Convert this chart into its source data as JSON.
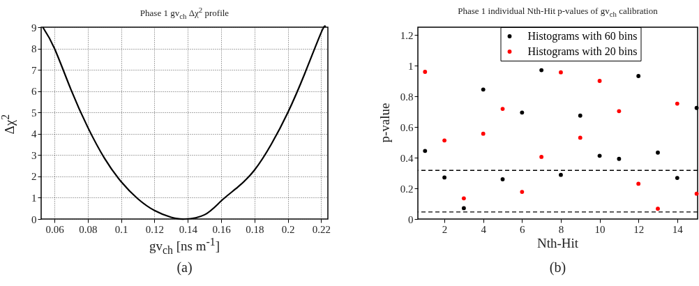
{
  "chart_data": [
    {
      "type": "line",
      "title": "Phase 1 gv$_{ch}$ Δχ$^{2}$ profile",
      "xlabel": "gv$_{ch}$ [ns m$^{-1}$]",
      "ylabel": "Δχ$^{2}$",
      "annotations": [
        "(a)"
      ],
      "series": [
        {
          "color": "#000000",
          "x": [
            0.053,
            0.06,
            0.07,
            0.08,
            0.09,
            0.1,
            0.11,
            0.12,
            0.13,
            0.138,
            0.15,
            0.16,
            0.17,
            0.18,
            0.19,
            0.2,
            0.21,
            0.22,
            0.2225
          ],
          "values": [
            9,
            8,
            6.05,
            4.3,
            2.85,
            1.75,
            0.95,
            0.4,
            0.08,
            0,
            0.2,
            0.85,
            1.5,
            2.3,
            3.5,
            5,
            6.8,
            8.75,
            9
          ]
        }
      ],
      "xlim": [
        0.052,
        0.224
      ],
      "ylim": [
        0,
        9
      ],
      "xticks": [
        0.06,
        0.08,
        0.1,
        0.12,
        0.14,
        0.16,
        0.18,
        0.2,
        0.22
      ],
      "yticks": [
        0,
        1,
        2,
        3,
        4,
        5,
        6,
        7,
        8,
        9
      ],
      "grid": true,
      "line_style": "solid"
    },
    {
      "type": "scatter",
      "title": "Phase 1 individual Nth-Hit p-values of gv$_{ch}$ calibration",
      "xlabel": "Nth-Hit",
      "ylabel": "p-value",
      "annotations": [
        "(b)"
      ],
      "x": [
        1,
        2,
        3,
        4,
        5,
        6,
        7,
        8,
        9,
        10,
        11,
        12,
        13,
        14,
        15
      ],
      "series": [
        {
          "name": "Histograms with 60 bins",
          "color": "#000000",
          "values": [
            0.444,
            0.271,
            0.071,
            0.844,
            0.259,
            0.694,
            0.97,
            0.288,
            0.674,
            0.412,
            0.392,
            0.932,
            0.433,
            0.268,
            0.724
          ]
        },
        {
          "name": "Histograms with 20 bins",
          "color": "#ff0000",
          "values": [
            0.959,
            0.512,
            0.135,
            0.556,
            0.718,
            0.177,
            0.405,
            0.956,
            0.53,
            0.9,
            0.703,
            0.23,
            0.067,
            0.752,
            0.165
          ]
        }
      ],
      "xlim": [
        0.63,
        15.05
      ],
      "ylim": [
        0,
        1.25
      ],
      "xticks": [
        2,
        4,
        6,
        8,
        10,
        12,
        14
      ],
      "yticks": [
        0,
        0.2,
        0.4,
        0.6,
        0.8,
        1,
        1.2
      ],
      "ref_lines": [
        {
          "axis": "y",
          "value": 0.317,
          "line_style": "dashed"
        },
        {
          "axis": "y",
          "value": 0.046,
          "line_style": "dashed"
        }
      ],
      "legend": "top",
      "marker": "circle"
    }
  ]
}
